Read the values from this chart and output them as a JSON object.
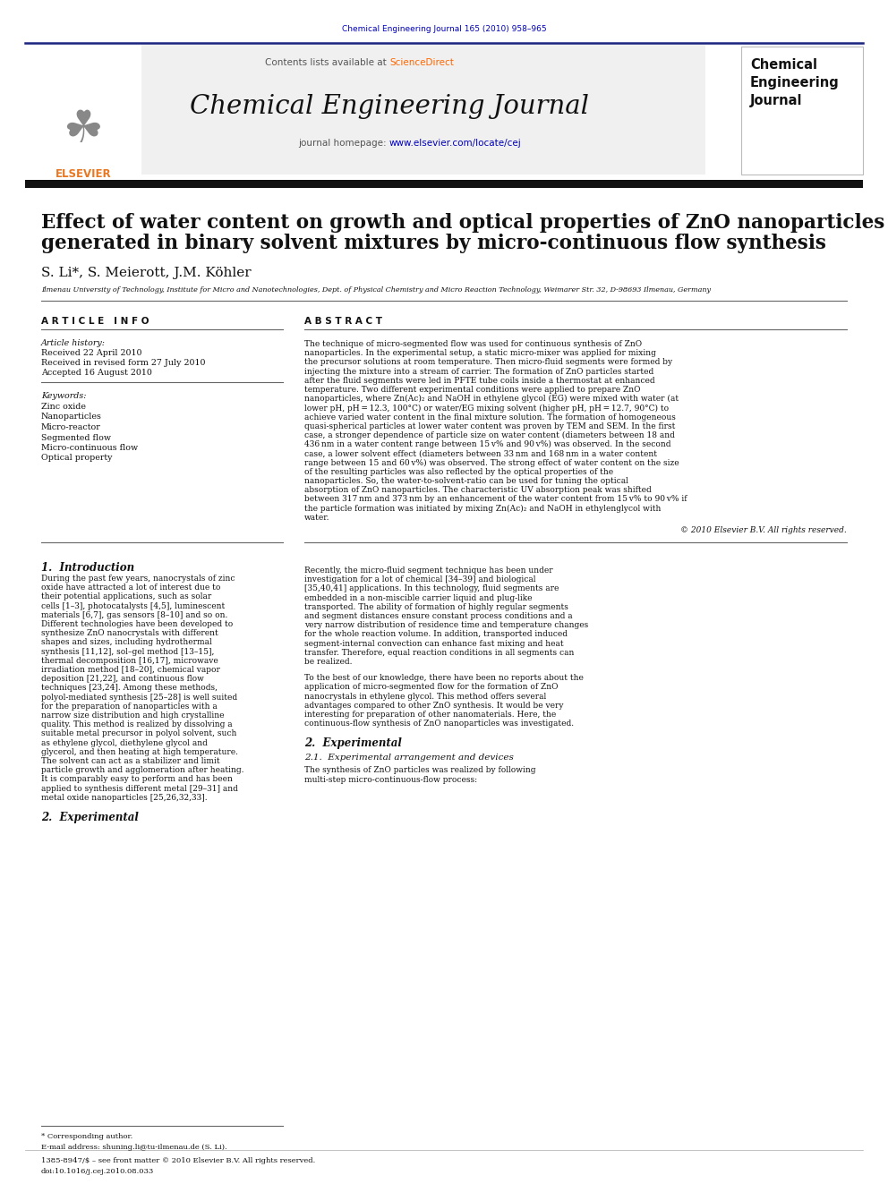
{
  "journal_ref": "Chemical Engineering Journal 165 (2010) 958–965",
  "journal_name": "Chemical Engineering Journal",
  "contents_line": "Contents lists available at ScienceDirect",
  "journal_homepage": "journal homepage: www.elsevier.com/locate/cej",
  "title_line1": "Effect of water content on growth and optical properties of ZnO nanoparticles",
  "title_line2": "generated in binary solvent mixtures by micro-continuous flow synthesis",
  "authors": "S. Li*, S. Meierott, J.M. Köhler",
  "affiliation": "Ilmenau University of Technology, Institute for Micro and Nanotechnologies, Dept. of Physical Chemistry and Micro Reaction Technology, Weimarer Str. 32, D-98693 Ilmenau, Germany",
  "article_info_header": "A R T I C L E   I N F O",
  "article_history_label": "Article history:",
  "received": "Received 22 April 2010",
  "received_revised": "Received in revised form 27 July 2010",
  "accepted": "Accepted 16 August 2010",
  "keywords_label": "Keywords:",
  "keywords": [
    "Zinc oxide",
    "Nanoparticles",
    "Micro-reactor",
    "Segmented flow",
    "Micro-continuous flow",
    "Optical property"
  ],
  "abstract_header": "A B S T R A C T",
  "abstract_text": "The technique of micro-segmented flow was used for continuous synthesis of ZnO nanoparticles. In the experimental setup, a static micro-mixer was applied for mixing the precursor solutions at room temperature. Then micro-fluid segments were formed by injecting the mixture into a stream of carrier. The formation of ZnO particles started after the fluid segments were led in PFTE tube coils inside a thermostat at enhanced temperature. Two different experimental conditions were applied to prepare ZnO nanoparticles, where Zn(Ac)₂ and NaOH in ethylene glycol (EG) were mixed with water (at lower pH, pH = 12.3, 100°C) or water/EG mixing solvent (higher pH, pH = 12.7, 90°C) to achieve varied water content in the final mixture solution. The formation of homogeneous quasi-spherical particles at lower water content was proven by TEM and SEM. In the first case, a stronger dependence of particle size on water content (diameters between 18 and 436 nm in a water content range between 15 v% and 90 v%) was observed. In the second case, a lower solvent effect (diameters between 33 nm and 168 nm in a water content range between 15 and 60 v%) was observed. The strong effect of water content on the size of the resulting particles was also reflected by the optical properties of the nanoparticles. So, the water-to-solvent-ratio can be used for tuning the optical absorption of ZnO nanoparticles. The characteristic UV absorption peak was shifted between 317 nm and 373 nm by an enhancement of the water content from 15 v% to 90 v% if the particle formation was initiated by mixing Zn(Ac)₂ and NaOH in ethylenglycol with water.",
  "copyright": "© 2010 Elsevier B.V. All rights reserved.",
  "intro_header": "1.  Introduction",
  "intro_col1": "    During the past few years, nanocrystals of zinc oxide have attracted a lot of interest due to their potential applications, such as solar cells [1–3], photocatalysts [4,5], luminescent materials [6,7], gas sensors [8–10] and so on. Different technologies have been developed to synthesize ZnO nanocrystals with different shapes and sizes, including hydrothermal synthesis [11,12], sol–gel method [13–15], thermal decomposition [16,17], microwave irradiation method [18–20], chemical vapor deposition [21,22], and continuous flow techniques [23,24]. Among these methods, polyol-mediated synthesis [25–28] is well suited for the preparation of nanoparticles with a narrow size distribution and high crystalline quality. This method is realized by dissolving a suitable metal precursor in polyol solvent, such as ethylene glycol, diethylene glycol and glycerol, and then heating at high temperature. The solvent can act as a stabilizer and limit particle growth and agglomeration after heating. It is comparably easy to perform and has been applied to synthesis different metal [29–31] and metal oxide nanoparticles [25,26,32,33].",
  "intro_col2_p1": "    Recently, the micro-fluid segment technique has been under investigation for a lot of chemical [34–39] and biological [35,40,41] applications. In this technology, fluid segments are embedded in a non-miscible carrier liquid and plug-like transported. The ability of formation of highly regular segments and segment distances ensure constant process conditions and a very narrow distribution of residence time and temperature changes for the whole reaction volume. In addition, transported induced segment-internal convection can enhance fast mixing and heat transfer. Therefore, equal reaction conditions in all segments can be realized.",
  "intro_col2_p2": "    To the best of our knowledge, there have been no reports about the application of micro-segmented flow for the formation of ZnO nanocrystals in ethylene glycol. This method offers several advantages compared to other ZnO synthesis. It would be very interesting for preparation of other nanomaterials. Here, the continuous-flow synthesis of ZnO nanoparticles was investigated.",
  "section2_header": "2.  Experimental",
  "section21_header": "2.1.  Experimental arrangement and devices",
  "section21_text": "    The synthesis of ZnO particles was realized by following multi-step micro-continuous-flow process:",
  "footnote_star": "* Corresponding author.",
  "footnote_email": "E-mail address: shuning.li@tu-ilmenau.de (S. Li).",
  "footnote_issn": "1385-8947/$ – see front matter © 2010 Elsevier B.V. All rights reserved.",
  "footnote_doi": "doi:10.1016/j.cej.2010.08.033",
  "bg_color": "#ffffff",
  "blue_dark": "#1a237e",
  "blue_link": "#0000bb",
  "orange_elsevier": "#e87722",
  "black": "#111111",
  "gray_header": "#f0f0f0"
}
